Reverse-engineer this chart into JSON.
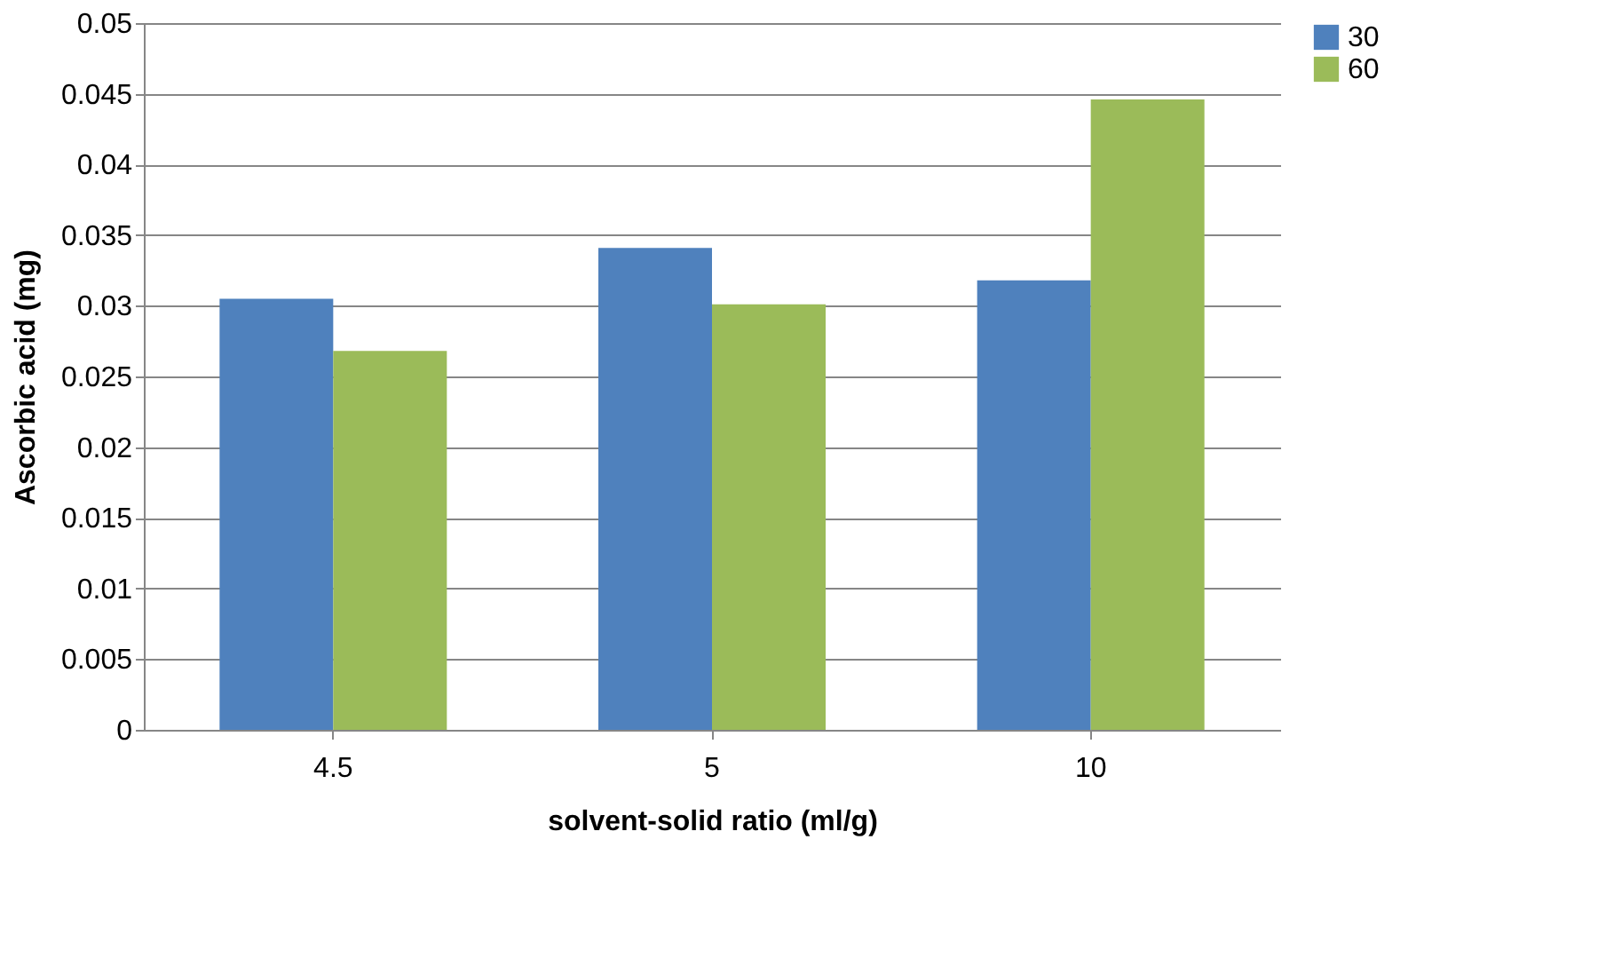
{
  "chart_data": {
    "type": "bar",
    "xlabel": "solvent-solid ratio (ml/g)",
    "ylabel": "Ascorbic acid (mg)",
    "categories": [
      "4.5",
      "5",
      "10"
    ],
    "series": [
      {
        "name": "30",
        "color": "#4f81bd",
        "values": [
          0.0305,
          0.0341,
          0.0318
        ]
      },
      {
        "name": "60",
        "color": "#9bbb59",
        "values": [
          0.0268,
          0.0301,
          0.0446
        ]
      }
    ],
    "ylim": [
      0,
      0.05
    ],
    "yticks": [
      0,
      0.005,
      0.01,
      0.015,
      0.02,
      0.025,
      0.03,
      0.035,
      0.04,
      0.045,
      0.05
    ],
    "grid": "y",
    "legend": "right"
  }
}
